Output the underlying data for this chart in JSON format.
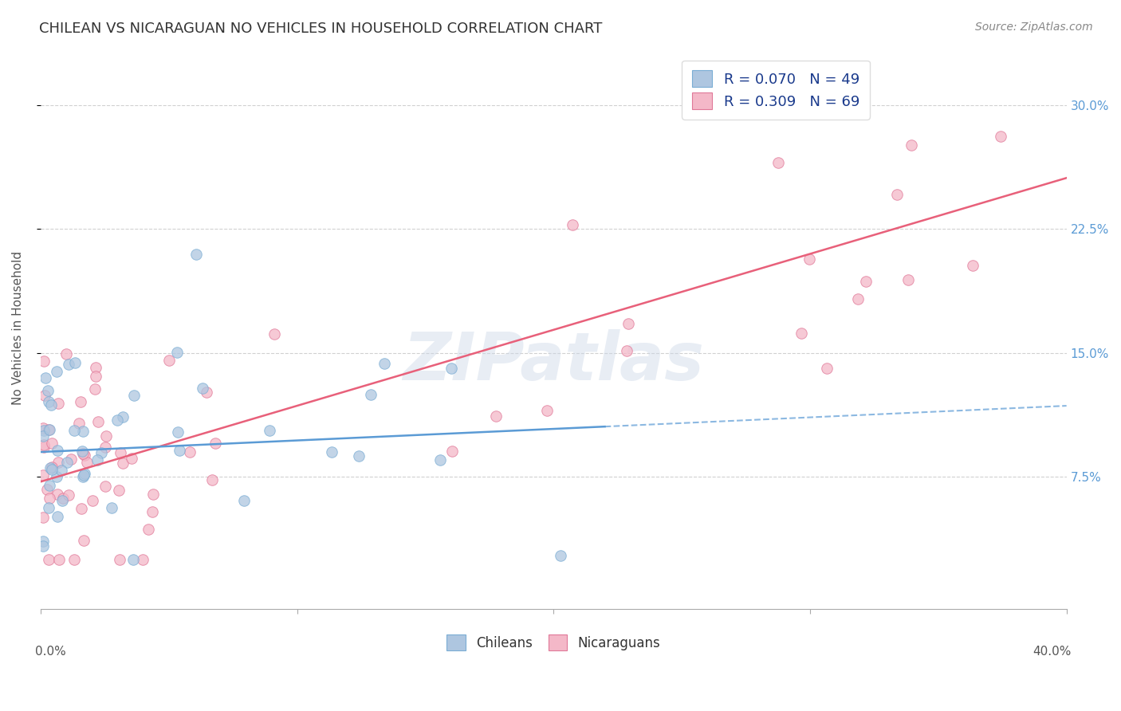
{
  "title": "CHILEAN VS NICARAGUAN NO VEHICLES IN HOUSEHOLD CORRELATION CHART",
  "source": "Source: ZipAtlas.com",
  "ylabel": "No Vehicles in Household",
  "xlim": [
    0.0,
    0.4
  ],
  "ylim": [
    -0.005,
    0.335
  ],
  "chilean_color": "#aec6e0",
  "chilean_edge": "#7aadd4",
  "nicaraguan_color": "#f4b8c8",
  "nicaraguan_edge": "#e07898",
  "chilean_line_color": "#5b9bd5",
  "nicaraguan_line_color": "#e8607a",
  "watermark_color": "#ccd8e8",
  "background_color": "#ffffff",
  "ch_intercept": 0.09,
  "ch_slope": 0.07,
  "ni_intercept": 0.072,
  "ni_slope": 0.46,
  "marker_size_pts": 95,
  "alpha": 0.75,
  "grid_color": "#cccccc",
  "ytick_vals": [
    0.075,
    0.15,
    0.225,
    0.3
  ],
  "ytick_labels": [
    "7.5%",
    "15.0%",
    "22.5%",
    "30.0%"
  ],
  "xtick_vals": [
    0.0,
    0.1,
    0.2,
    0.3,
    0.4
  ],
  "legend_texts": [
    "R = 0.070   N = 49",
    "R = 0.309   N = 69"
  ],
  "bottom_legend_texts": [
    "Chileans",
    "Nicaraguans"
  ],
  "title_fontsize": 13,
  "source_fontsize": 10,
  "axis_label_fontsize": 11,
  "tick_label_fontsize": 11,
  "legend_fontsize": 13
}
